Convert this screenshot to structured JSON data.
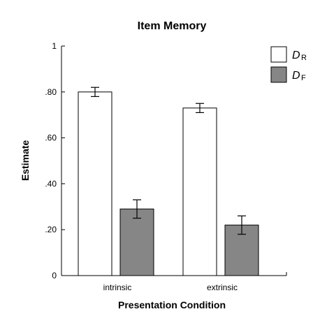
{
  "chart_data": {
    "type": "bar",
    "title": "Item Memory",
    "xlabel": "Presentation Condition",
    "ylabel": "Estimate",
    "categories": [
      "intrinsic",
      "extrinsic"
    ],
    "ylim": [
      0,
      1
    ],
    "yticks": [
      {
        "value": 0,
        "label": "0"
      },
      {
        "value": 0.2,
        "label": ".20"
      },
      {
        "value": 0.4,
        "label": ".40"
      },
      {
        "value": 0.6,
        "label": ".60"
      },
      {
        "value": 0.8,
        "label": ".80"
      },
      {
        "value": 1,
        "label": "1"
      }
    ],
    "series": [
      {
        "name": "D",
        "subscript": "R",
        "color": "#ffffff",
        "values": [
          0.8,
          0.73
        ],
        "errors": [
          0.02,
          0.02
        ]
      },
      {
        "name": "D",
        "subscript": "F",
        "color": "#868686",
        "values": [
          0.29,
          0.22
        ],
        "errors": [
          0.04,
          0.04
        ]
      }
    ],
    "grid": false,
    "legend_position": "top-right"
  }
}
